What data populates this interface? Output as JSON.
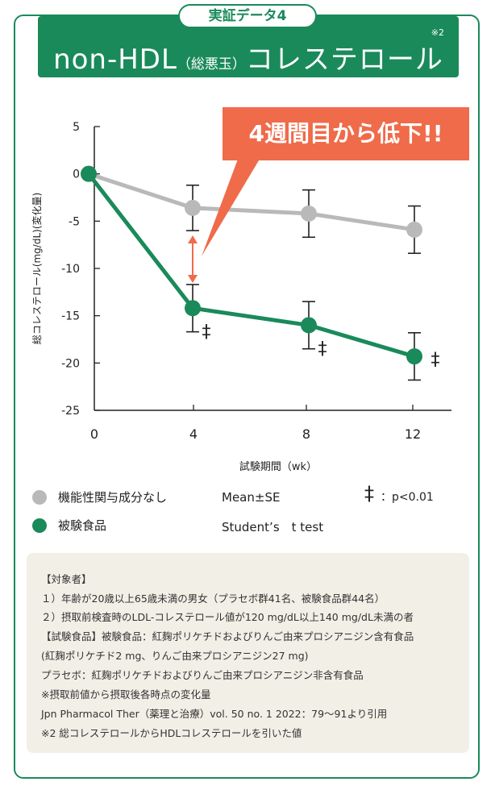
{
  "tag": "実証データ4",
  "header": {
    "title_main": "non-HDL",
    "title_paren": "（総悪玉）",
    "title_suffix": "コレステロール",
    "note": "※2"
  },
  "callout": "4週間目から低下!!",
  "colors": {
    "green": "#1a8a5b",
    "gray": "#b9b9b9",
    "orange": "#ef6b4a",
    "notes_bg": "#f2efe7"
  },
  "chart_data": {
    "type": "line",
    "xlabel": "試験期間（wk）",
    "ylabel": "総コレステロール(mg/dL)(変化量)",
    "x": [
      0,
      4,
      8,
      12
    ],
    "xticks": [
      "0",
      "4",
      "8",
      "12"
    ],
    "yticks": [
      "5",
      "0",
      "-5",
      "-10",
      "-15",
      "-20",
      "-25"
    ],
    "ylim": [
      -25,
      5
    ],
    "series": [
      {
        "name": "機能性関与成分なし",
        "values": [
          0,
          -3.6,
          -4.2,
          -5.9
        ],
        "se": [
          0,
          2.4,
          2.5,
          2.5
        ],
        "color": "#b9b9b9"
      },
      {
        "name": "被験食品",
        "values": [
          0,
          -14.2,
          -16.0,
          -19.3
        ],
        "se": [
          0,
          2.5,
          2.5,
          2.5
        ],
        "color": "#1a8a5b"
      }
    ],
    "significance_mark": "‡"
  },
  "legend": {
    "stat1": "Mean±SE",
    "stat2": "Student’s　t test",
    "sig_mark": "‡",
    "sig_text": "：p<0.01"
  },
  "notes": [
    "【対象者】",
    "１）年齢が20歳以上65歳未満の男女（プラセボ群41名、被験食品群44名）",
    "２）摂取前検査時のLDL-コレステロール値が120 mg/dL以上140 mg/dL未満の者",
    "【試験食品】被験食品：紅麹ポリケチドおよびりんご由来プロシアニジン含有食品",
    "(紅麹ポリケチド2 mg、りんご由来プロシアニジン27 mg)",
    "プラセボ：紅麹ポリケチドおよびりんご由来プロシアニジン非含有食品",
    "※摂取前値から摂取後各時点の変化量",
    "Jpn Pharmacol Ther（薬理と治療）vol. 50 no. 1 2022：79〜91より引用",
    "※2 総コレステロールからHDLコレステロールを引いた値"
  ]
}
